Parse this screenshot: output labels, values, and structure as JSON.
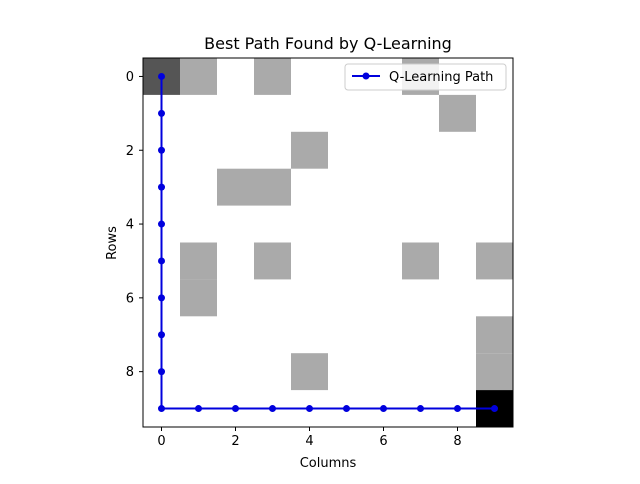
{
  "chart_data": {
    "type": "heatmap",
    "title": "Best Path Found by Q-Learning",
    "xlabel": "Columns",
    "ylabel": "Rows",
    "grid_size": [
      10,
      10
    ],
    "xlim": [
      -0.5,
      9.5
    ],
    "ylim": [
      9.5,
      -0.5
    ],
    "xticks": [
      0,
      2,
      4,
      6,
      8
    ],
    "yticks": [
      0,
      2,
      4,
      6,
      8
    ],
    "grid": false,
    "legend_placement": "top-right",
    "cell_value_colors": {
      "free": "#ffffff",
      "obstacle": "#aaaaaa",
      "start": "#555555",
      "goal": "#000000"
    },
    "cells": [
      {
        "row": 0,
        "col": 0,
        "type": "start"
      },
      {
        "row": 0,
        "col": 1,
        "type": "obstacle"
      },
      {
        "row": 0,
        "col": 3,
        "type": "obstacle"
      },
      {
        "row": 0,
        "col": 7,
        "type": "obstacle"
      },
      {
        "row": 1,
        "col": 8,
        "type": "obstacle"
      },
      {
        "row": 2,
        "col": 4,
        "type": "obstacle"
      },
      {
        "row": 3,
        "col": 2,
        "type": "obstacle"
      },
      {
        "row": 3,
        "col": 3,
        "type": "obstacle"
      },
      {
        "row": 5,
        "col": 1,
        "type": "obstacle"
      },
      {
        "row": 5,
        "col": 3,
        "type": "obstacle"
      },
      {
        "row": 5,
        "col": 7,
        "type": "obstacle"
      },
      {
        "row": 5,
        "col": 9,
        "type": "obstacle"
      },
      {
        "row": 6,
        "col": 1,
        "type": "obstacle"
      },
      {
        "row": 7,
        "col": 9,
        "type": "obstacle"
      },
      {
        "row": 8,
        "col": 4,
        "type": "obstacle"
      },
      {
        "row": 8,
        "col": 9,
        "type": "obstacle"
      },
      {
        "row": 9,
        "col": 9,
        "type": "goal"
      }
    ],
    "series": [
      {
        "name": "Q-Learning Path",
        "color": "#0000dd",
        "marker": "circle",
        "points": [
          [
            0,
            0
          ],
          [
            0,
            1
          ],
          [
            0,
            2
          ],
          [
            0,
            3
          ],
          [
            0,
            4
          ],
          [
            0,
            5
          ],
          [
            0,
            6
          ],
          [
            0,
            7
          ],
          [
            0,
            8
          ],
          [
            0,
            9
          ],
          [
            1,
            9
          ],
          [
            2,
            9
          ],
          [
            3,
            9
          ],
          [
            4,
            9
          ],
          [
            5,
            9
          ],
          [
            6,
            9
          ],
          [
            7,
            9
          ],
          [
            8,
            9
          ],
          [
            9,
            9
          ]
        ]
      }
    ]
  }
}
